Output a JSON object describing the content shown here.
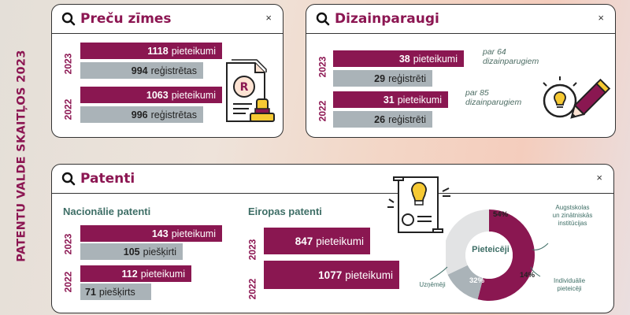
{
  "side_title": "PATENTU VALDE SKAITĻOS 2023",
  "colors": {
    "primary": "#8a1751",
    "secondary": "#aab3b8",
    "accent": "#3e6e66",
    "slice_light": "#e2e3e4"
  },
  "trademarks": {
    "title": "Preču zīmes",
    "close": "×",
    "rows": [
      {
        "year": "2023",
        "applications": 1118,
        "applications_label": "pieteikumi",
        "registered": 994,
        "registered_label": "reģistrētas"
      },
      {
        "year": "2022",
        "applications": 1063,
        "applications_label": "pieteikumi",
        "registered": 996,
        "registered_label": "reģistrētas"
      }
    ]
  },
  "designs": {
    "title": "Dizainparaugi",
    "close": "×",
    "rows": [
      {
        "year": "2023",
        "applications": 38,
        "applications_label": "pieteikumi",
        "registered": 29,
        "registered_label": "reģistrēti",
        "note_line1": "par 64",
        "note_line2": "dizainparugiem"
      },
      {
        "year": "2022",
        "applications": 31,
        "applications_label": "pieteikumi",
        "registered": 26,
        "registered_label": "reģistrēti",
        "note_line1": "par 85",
        "note_line2": "dizainparugiem"
      }
    ]
  },
  "patents": {
    "title": "Patenti",
    "close": "×",
    "national": {
      "title": "Nacionālie patenti",
      "rows": [
        {
          "year": "2023",
          "applications": 143,
          "applications_label": "pieteikumi",
          "granted": 105,
          "granted_label": "piešķirti"
        },
        {
          "year": "2022",
          "applications": 112,
          "applications_label": "pieteikumi",
          "granted": 71,
          "granted_label": "piešķirts"
        }
      ]
    },
    "european": {
      "title": "Eiropas patenti",
      "rows": [
        {
          "year": "2023",
          "value": 847,
          "label": "pieteikumi"
        },
        {
          "year": "2022",
          "value": 1077,
          "label": "pieteikumi"
        }
      ]
    },
    "donut": {
      "center_label": "Pieteicēji",
      "slices": [
        {
          "name": "Augstskolas un zinātniskās institūcijas",
          "value": 54,
          "label": "54%"
        },
        {
          "name": "Individuālie pieteicēji",
          "value": 14,
          "label": "14%"
        },
        {
          "name": "Uzņēmēji",
          "value": 32,
          "label": "32%"
        }
      ],
      "annotations": {
        "universities_1": "Augstskolas",
        "universities_2": "un zinātniskās",
        "universities_3": "institūcijas",
        "individuals_1": "Individuālie",
        "individuals_2": "pieteicēji",
        "businesses": "Uzņēmēji"
      }
    }
  },
  "chart_data": [
    {
      "type": "bar",
      "title": "Preču zīmes",
      "categories": [
        "2023",
        "2022"
      ],
      "series": [
        {
          "name": "pieteikumi",
          "values": [
            1118,
            1063
          ]
        },
        {
          "name": "reģistrētas",
          "values": [
            994,
            996
          ]
        }
      ]
    },
    {
      "type": "bar",
      "title": "Dizainparaugi",
      "categories": [
        "2023",
        "2022"
      ],
      "series": [
        {
          "name": "pieteikumi",
          "values": [
            38,
            31
          ]
        },
        {
          "name": "reģistrēti",
          "values": [
            29,
            26
          ]
        }
      ]
    },
    {
      "type": "bar",
      "title": "Nacionālie patenti",
      "categories": [
        "2023",
        "2022"
      ],
      "series": [
        {
          "name": "pieteikumi",
          "values": [
            143,
            112
          ]
        },
        {
          "name": "piešķirti",
          "values": [
            105,
            71
          ]
        }
      ]
    },
    {
      "type": "bar",
      "title": "Eiropas patenti",
      "categories": [
        "2023",
        "2022"
      ],
      "series": [
        {
          "name": "pieteikumi",
          "values": [
            847,
            1077
          ]
        }
      ]
    },
    {
      "type": "pie",
      "title": "Pieteicēji",
      "categories": [
        "Augstskolas un zinātniskās institūcijas",
        "Individuālie pieteicēji",
        "Uzņēmēji"
      ],
      "values": [
        54,
        14,
        32
      ]
    }
  ]
}
